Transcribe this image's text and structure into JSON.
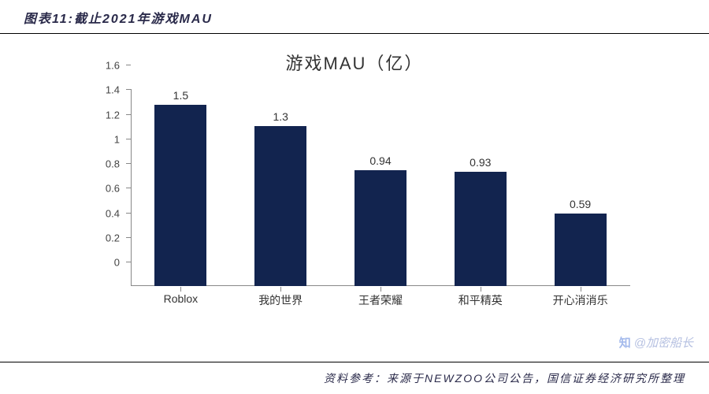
{
  "header": {
    "title": "图表11:截止2021年游戏MAU"
  },
  "chart": {
    "type": "bar",
    "title": "游戏MAU（亿）",
    "title_fontsize": 22,
    "categories": [
      "Roblox",
      "我的世界",
      "王者荣耀",
      "和平精英",
      "开心消消乐"
    ],
    "values": [
      1.5,
      1.3,
      0.94,
      0.93,
      0.59
    ],
    "value_labels": [
      "1.5",
      "1.3",
      "0.94",
      "0.93",
      "0.59"
    ],
    "bar_color": "#12244f",
    "background_color": "#ffffff",
    "axis_color": "#888888",
    "text_color": "#333333",
    "ylim": [
      0,
      1.6
    ],
    "yticks": [
      0,
      0.2,
      0.4,
      0.6,
      0.8,
      1,
      1.2,
      1.4,
      1.6
    ],
    "ytick_labels": [
      "0",
      "0.2",
      "0.4",
      "0.6",
      "0.8",
      "1",
      "1.2",
      "1.4",
      "1.6"
    ],
    "label_fontsize": 14,
    "bar_width": 0.52,
    "grid": false
  },
  "footer": {
    "text": "资料参考：来源于NEWZOO公司公告，国信证券经济研究所整理"
  },
  "watermark": {
    "logo": "知",
    "text": "@加密船长"
  }
}
